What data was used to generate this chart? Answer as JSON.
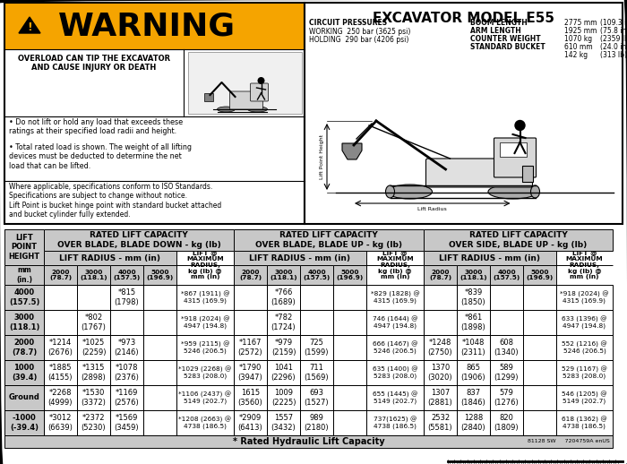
{
  "title": "EXCAVATOR MODEL E55",
  "warning_bullets": [
    "Do not lift or hold any load that exceeds these\nratings at their specified load radii and height.",
    "Total rated load is shown. The weight of all lifting\ndevices must be deducted to determine the net\nload that can be lifted."
  ],
  "iso_note": "Where applicable, specifications conform to ISO Standards.\nSpecifications are subject to change without notice.\nLift Point is bucket hinge point with standard bucket attached\nand bucket cylinder fully extended.",
  "footer": "* Rated Hydraulic Lift Capacity",
  "footer_right": "81128 SW     7204759A enUS",
  "warning_bg": "#f5a400",
  "gray_bg": "#c8c8c8",
  "lift_heights": [
    "4000\n(157.5)",
    "3000\n(118.1)",
    "2000\n(78.7)",
    "1000\n(39.4)",
    "Ground",
    "-1000\n(-39.4)"
  ],
  "col_radii": [
    "2000\n(78.7)",
    "3000\n(118.1)",
    "4000\n(157.5)",
    "5000\n(196.9)"
  ],
  "table_data": {
    "blade_down": {
      "r2000": [
        "",
        "",
        "*1214\n(2676)",
        "*1885\n(4155)",
        "*2268\n(4999)",
        "*3012\n(6639)"
      ],
      "r3000": [
        "",
        "*802\n(1767)",
        "*1025\n(2259)",
        "*1315\n(2898)",
        "*1530\n(3372)",
        "*2372\n(5230)"
      ],
      "r4000": [
        "*815\n(1798)",
        "",
        "*973\n(2146)",
        "*1078\n(2376)",
        "*1169\n(2576)",
        "*1569\n(3459)"
      ],
      "r5000": [
        "",
        "",
        "",
        "",
        "",
        ""
      ],
      "max_r": [
        "*867 (1911) @\n4315 (169.9)",
        "*918 (2024) @\n4947 (194.8)",
        "*959 (2115) @\n5246 (206.5)",
        "*1029 (2268) @\n5283 (208.0)",
        "*1106 (2437) @\n5149 (202.7)",
        "*1208 (2663) @\n4738 (186.5)"
      ]
    },
    "blade_up": {
      "r2000": [
        "",
        "",
        "*1167\n(2572)",
        "*1790\n(3947)",
        "1615\n(3560)",
        "*2909\n(6413)"
      ],
      "r3000": [
        "*766\n(1689)",
        "*782\n(1724)",
        "*979\n(2159)",
        "1041\n(2296)",
        "1009\n(2225)",
        "1557\n(3432)"
      ],
      "r4000": [
        "",
        "",
        "725\n(1599)",
        "711\n(1569)",
        "693\n(1527)",
        "989\n(2180)"
      ],
      "r5000": [
        "",
        "",
        "",
        "",
        "",
        ""
      ],
      "max_r": [
        "*829 (1828) @\n4315 (169.9)",
        "746 (1644) @\n4947 (194.8)",
        "666 (1467) @\n5246 (206.5)",
        "635 (1400) @\n5283 (208.0)",
        "655 (1445) @\n5149 (202.7)",
        "737(1625) @\n4738 (186.5)"
      ]
    },
    "over_side": {
      "r2000": [
        "",
        "",
        "*1248\n(2750)",
        "1370\n(3020)",
        "1307\n(2881)",
        "2532\n(5581)"
      ],
      "r3000": [
        "*839\n(1850)",
        "*861\n(1898)",
        "*1048\n(2311)",
        "865\n(1906)",
        "837\n(1846)",
        "1288\n(2840)"
      ],
      "r4000": [
        "",
        "",
        "608\n(1340)",
        "589\n(1299)",
        "579\n(1276)",
        "820\n(1809)"
      ],
      "r5000": [
        "",
        "",
        "",
        "",
        "",
        ""
      ],
      "max_r": [
        "*918 (2024) @\n4315 (169.9)",
        "633 (1396) @\n4947 (194.8)",
        "552 (1216) @\n5246 (206.5)",
        "529 (1167) @\n5283 (208.0)",
        "546 (1205) @\n5149 (202.7)",
        "618 (1362) @\n4738 (186.5)"
      ]
    }
  }
}
